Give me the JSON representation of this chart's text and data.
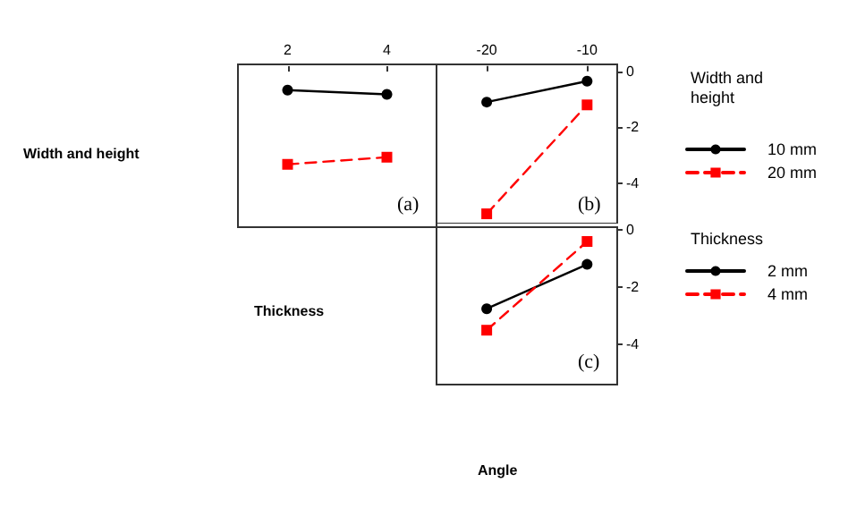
{
  "chart_data": [
    {
      "type": "line",
      "ylabel": "Width and height",
      "annotations": [
        "(a)"
      ],
      "x": [
        2,
        4
      ],
      "xlim": [
        1,
        5
      ],
      "xticks": [
        2,
        4
      ],
      "ylim": [
        -5.45,
        0.25
      ],
      "yticks": [
        0,
        -2,
        -4
      ],
      "tick_labels": "x",
      "legend": false,
      "grid": false,
      "series": [
        {
          "color": "#000000",
          "marker": "circle",
          "line_style": "solid",
          "values": [
            -0.65,
            -0.8
          ]
        },
        {
          "color": "#ff0000",
          "marker": "square",
          "line_style": "dashed",
          "values": [
            -3.25,
            -3.0
          ]
        }
      ]
    },
    {
      "type": "line",
      "legend_title": "Width and height",
      "annotations": [
        "(b)"
      ],
      "x": [
        -20,
        -10
      ],
      "xlim": [
        -25,
        -7
      ],
      "xticks": [
        -20,
        -10
      ],
      "ylim": [
        -5.45,
        0.25
      ],
      "yticks": [
        0,
        -2,
        -4
      ],
      "legend": "right",
      "grid": false,
      "series": [
        {
          "name": "10 mm",
          "color": "#000000",
          "marker": "circle",
          "line_style": "solid",
          "values": [
            -1.1,
            -0.35
          ]
        },
        {
          "name": "20 mm",
          "color": "#ff0000",
          "marker": "square",
          "line_style": "dashed",
          "values": [
            -5.1,
            -1.2
          ]
        }
      ]
    },
    {
      "type": "line",
      "ylabel": "Thickness",
      "xlabel": "Angle",
      "legend_title": "Thickness",
      "annotations": [
        "(c)"
      ],
      "x": [
        -20,
        -10
      ],
      "xlim": [
        -25,
        -7
      ],
      "ylim": [
        -5.4,
        0.1
      ],
      "yticks": [
        0,
        -2,
        -4
      ],
      "tick_labels": "y",
      "legend": "right",
      "grid": false,
      "series": [
        {
          "name": "2 mm",
          "color": "#000000",
          "marker": "circle",
          "line_style": "solid",
          "values": [
            -2.75,
            -1.2
          ]
        },
        {
          "name": "4 mm",
          "color": "#ff0000",
          "marker": "square",
          "line_style": "dashed",
          "values": [
            -3.5,
            -0.4
          ]
        }
      ]
    }
  ]
}
